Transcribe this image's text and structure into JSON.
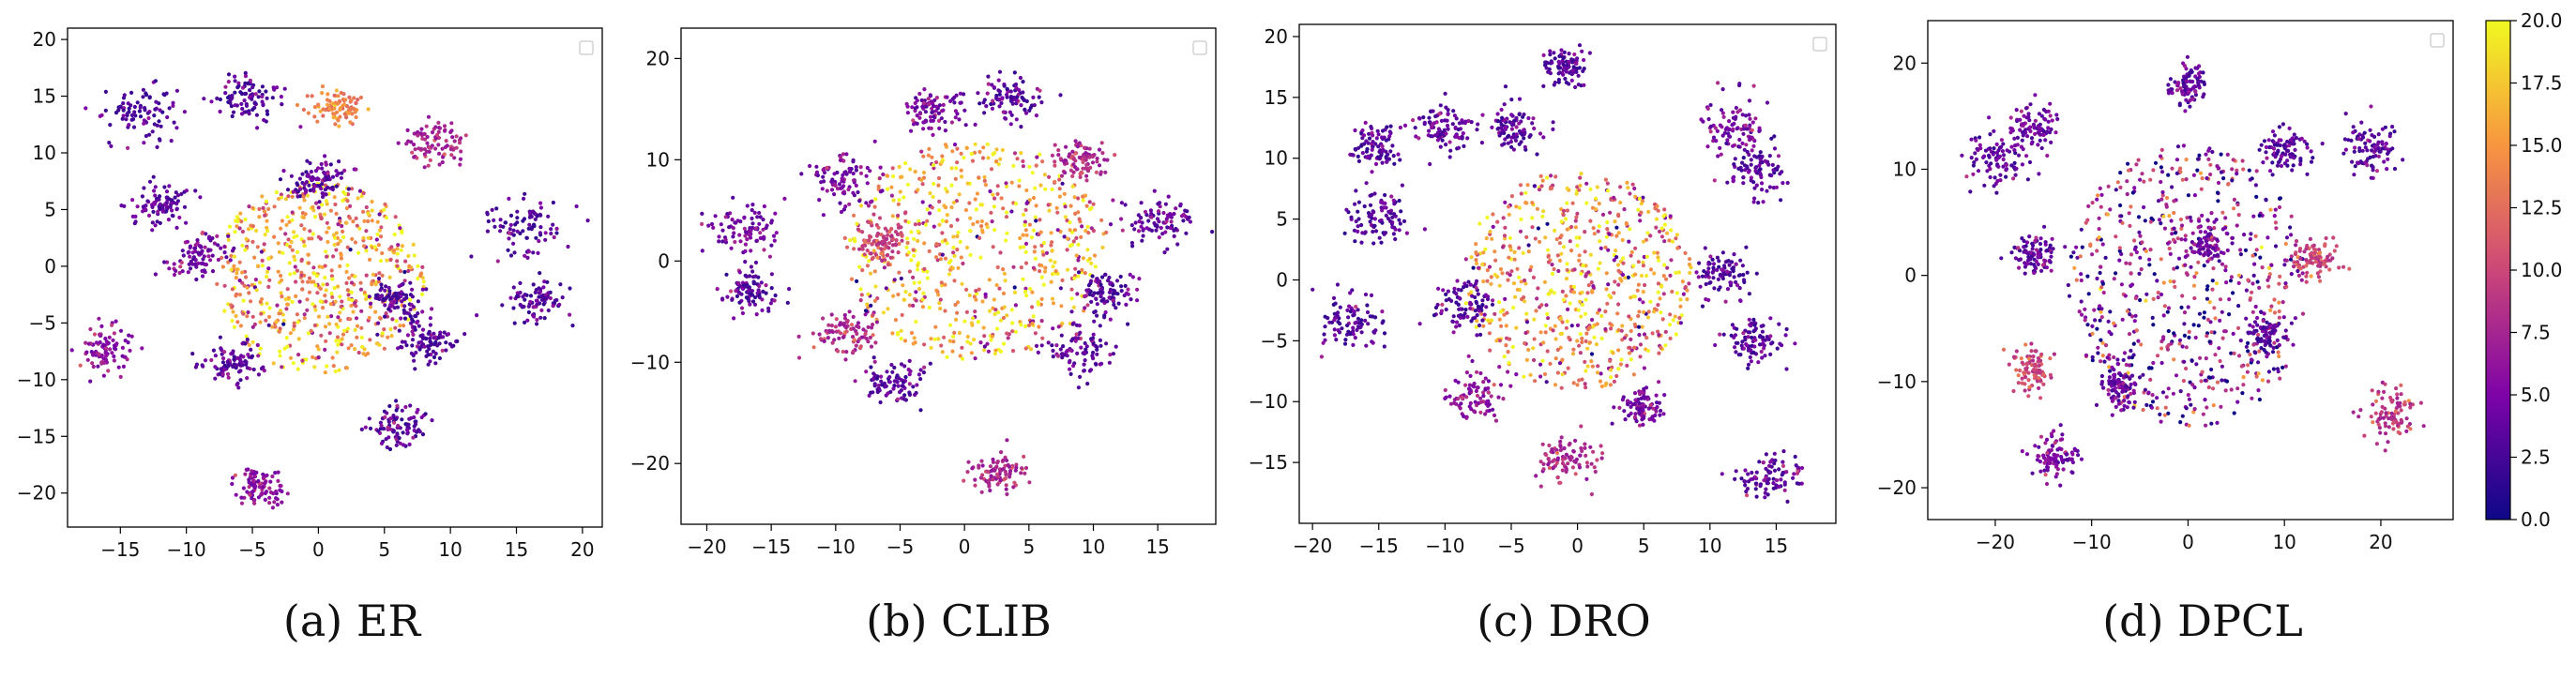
{
  "colorbar": {
    "colormap": "plasma",
    "range": [
      0.0,
      20.0
    ],
    "tick_values": [
      0.0,
      2.5,
      5.0,
      7.5,
      10.0,
      12.5,
      15.0,
      17.5,
      20.0
    ],
    "tick_labels": [
      "0.0",
      "2.5",
      "5.0",
      "7.5",
      "10.0",
      "12.5",
      "15.0",
      "17.5",
      "20.0"
    ]
  },
  "chart_data": [
    {
      "type": "scatter",
      "caption": "(a) ER",
      "xlim": [
        -19,
        21.5
      ],
      "ylim": [
        -23,
        21
      ],
      "xticks": [
        -15,
        -10,
        -5,
        0,
        5,
        10,
        15,
        20
      ],
      "yticks": [
        -20,
        -15,
        -10,
        -5,
        0,
        5,
        10,
        15,
        20
      ],
      "legend": "top-right (empty)",
      "grid": false,
      "clusters": [
        {
          "x": -13.5,
          "y": 13.5,
          "r": 2.5,
          "level": 1.5
        },
        {
          "x": -5.5,
          "y": 15,
          "r": 2.2,
          "level": 1.5
        },
        {
          "x": 1.5,
          "y": 14,
          "r": 1.8,
          "level": 12
        },
        {
          "x": 9,
          "y": 11,
          "r": 2,
          "level": 6
        },
        {
          "x": 16,
          "y": 3.5,
          "r": 2.5,
          "level": 1.5
        },
        {
          "x": 16.5,
          "y": -3,
          "r": 2,
          "level": 1.5
        },
        {
          "x": -16,
          "y": -7.5,
          "r": 2,
          "level": 4
        },
        {
          "x": 6,
          "y": -14,
          "r": 2,
          "level": 1.5
        },
        {
          "x": -4.5,
          "y": -19.5,
          "r": 1.8,
          "level": 4
        },
        {
          "x": 0,
          "y": 7.5,
          "r": 1.8,
          "level": 1.5
        },
        {
          "x": -12,
          "y": 5.5,
          "r": 2,
          "level": 2
        },
        {
          "x": 6,
          "y": -3,
          "r": 1.8,
          "level": 1.5
        },
        {
          "x": 8,
          "y": -6.5,
          "r": 2,
          "level": 1.5
        },
        {
          "x": -9,
          "y": 1,
          "r": 2,
          "level": 3
        },
        {
          "x": -6.5,
          "y": -8.5,
          "r": 2,
          "level": 2
        }
      ],
      "spread": {
        "x": 0,
        "y": -1,
        "r": 7,
        "level": 15
      }
    },
    {
      "type": "scatter",
      "caption": "(b) CLIB",
      "xlim": [
        -22,
        19.5
      ],
      "ylim": [
        -26,
        23
      ],
      "xticks": [
        -20,
        -15,
        -10,
        -5,
        0,
        5,
        10,
        15
      ],
      "yticks": [
        -20,
        -10,
        0,
        10,
        20
      ],
      "legend": "top-right (empty)",
      "grid": false,
      "clusters": [
        {
          "x": -17,
          "y": 3,
          "r": 2.5,
          "level": 3
        },
        {
          "x": -16.5,
          "y": -3,
          "r": 2,
          "level": 1.5
        },
        {
          "x": -9,
          "y": 8,
          "r": 2.5,
          "level": 3
        },
        {
          "x": -2.5,
          "y": 15,
          "r": 2.2,
          "level": 3
        },
        {
          "x": 3.5,
          "y": 16,
          "r": 2.2,
          "level": 1.5
        },
        {
          "x": 9,
          "y": 10,
          "r": 2,
          "level": 6
        },
        {
          "x": 15,
          "y": 4,
          "r": 2.5,
          "level": 2
        },
        {
          "x": -9,
          "y": -7,
          "r": 2.5,
          "level": 6
        },
        {
          "x": -5.5,
          "y": -12,
          "r": 2,
          "level": 1.5
        },
        {
          "x": 2.5,
          "y": -21,
          "r": 2,
          "level": 6
        },
        {
          "x": 9,
          "y": -9,
          "r": 2.5,
          "level": 2
        },
        {
          "x": 11,
          "y": -3,
          "r": 2,
          "level": 1.5
        },
        {
          "x": -6.5,
          "y": 2,
          "r": 2,
          "level": 8
        }
      ],
      "spread": {
        "x": 1,
        "y": 1,
        "r": 9,
        "level": 15
      }
    },
    {
      "type": "scatter",
      "caption": "(c) DRO",
      "xlim": [
        -21,
        19.5
      ],
      "ylim": [
        -20,
        21
      ],
      "xticks": [
        -20,
        -15,
        -10,
        -5,
        0,
        5,
        10,
        15
      ],
      "yticks": [
        -15,
        -10,
        -5,
        0,
        5,
        10,
        15,
        20
      ],
      "legend": "top-right (empty)",
      "grid": false,
      "clusters": [
        {
          "x": -1,
          "y": 17.5,
          "r": 1.5,
          "level": 1.5
        },
        {
          "x": -15,
          "y": 11,
          "r": 2,
          "level": 1.5
        },
        {
          "x": -10,
          "y": 12.5,
          "r": 2,
          "level": 2
        },
        {
          "x": -5,
          "y": 12.5,
          "r": 1.8,
          "level": 1.5
        },
        {
          "x": 12,
          "y": 12.5,
          "r": 2.2,
          "level": 3
        },
        {
          "x": 13.5,
          "y": 9,
          "r": 2,
          "level": 1.5
        },
        {
          "x": -15,
          "y": 5,
          "r": 2,
          "level": 1.5
        },
        {
          "x": -17,
          "y": -3.5,
          "r": 2.2,
          "level": 1.5
        },
        {
          "x": -7.5,
          "y": -9.5,
          "r": 2,
          "level": 4
        },
        {
          "x": 14.5,
          "y": -16,
          "r": 2,
          "level": 2
        },
        {
          "x": -1,
          "y": -14.5,
          "r": 2,
          "level": 6
        },
        {
          "x": 11,
          "y": 0.5,
          "r": 2,
          "level": 1.5
        },
        {
          "x": 13.5,
          "y": -5,
          "r": 2,
          "level": 1.5
        },
        {
          "x": -8.5,
          "y": -2,
          "r": 2,
          "level": 1.5
        },
        {
          "x": 5,
          "y": -10.5,
          "r": 1.5,
          "level": 3
        }
      ],
      "spread": {
        "x": 0,
        "y": 0,
        "r": 7.5,
        "level": 14
      }
    },
    {
      "type": "scatter",
      "caption": "(d) DPCL",
      "xlim": [
        -27,
        27.5
      ],
      "ylim": [
        -23,
        24
      ],
      "xticks": [
        -20,
        -10,
        0,
        10,
        20
      ],
      "yticks": [
        -20,
        -10,
        0,
        10,
        20
      ],
      "legend": "top-right (empty)",
      "grid": false,
      "clusters": [
        {
          "x": -20,
          "y": 11,
          "r": 2.8,
          "level": 1.5
        },
        {
          "x": -16,
          "y": 14,
          "r": 2.2,
          "level": 2.5
        },
        {
          "x": 19,
          "y": 12,
          "r": 2.5,
          "level": 1.5
        },
        {
          "x": 10,
          "y": 12,
          "r": 2.2,
          "level": 1.5
        },
        {
          "x": 0,
          "y": 18,
          "r": 1.8,
          "level": 2
        },
        {
          "x": 21,
          "y": -13,
          "r": 2.5,
          "level": 7
        },
        {
          "x": -14,
          "y": -17,
          "r": 2.2,
          "level": 3
        },
        {
          "x": -16,
          "y": -9,
          "r": 2,
          "level": 8
        },
        {
          "x": -16,
          "y": 2,
          "r": 2,
          "level": 2
        },
        {
          "x": 13.5,
          "y": 1.5,
          "r": 2,
          "level": 8
        },
        {
          "x": 2,
          "y": 3,
          "r": 2,
          "level": 3
        },
        {
          "x": 8,
          "y": -5.5,
          "r": 1.8,
          "level": 1.5
        },
        {
          "x": -7,
          "y": -10.5,
          "r": 2,
          "level": 2
        }
      ],
      "spread": {
        "x": 0,
        "y": -1,
        "r": 11,
        "level": 6
      }
    }
  ]
}
